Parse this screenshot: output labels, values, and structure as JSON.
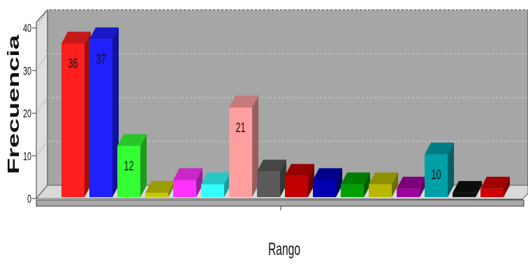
{
  "chart_data": {
    "type": "bar",
    "three_d": true,
    "values": [
      36,
      37,
      12,
      1,
      4,
      3,
      21,
      6,
      5,
      4,
      3,
      3,
      2,
      10,
      1,
      2
    ],
    "colors": [
      "#ff1f1f",
      "#2020ff",
      "#33ff33",
      "#c8c800",
      "#ff33ff",
      "#33ffff",
      "#ff9e9e",
      "#5a5a5a",
      "#c00000",
      "#0000b0",
      "#00a000",
      "#b8b800",
      "#a000a0",
      "#00a0a8",
      "#101010",
      "#d00000"
    ],
    "data_labels": [
      "36",
      "37",
      "12",
      "",
      "",
      "",
      "21",
      "",
      "",
      "",
      "",
      "",
      "",
      "10",
      "",
      ""
    ],
    "xlabel": "Rango",
    "ylabel": "Frecuencia",
    "ylim": [
      0,
      40
    ],
    "yticks": [
      0,
      10,
      20,
      30,
      40
    ],
    "grid": true,
    "legend": "none"
  }
}
